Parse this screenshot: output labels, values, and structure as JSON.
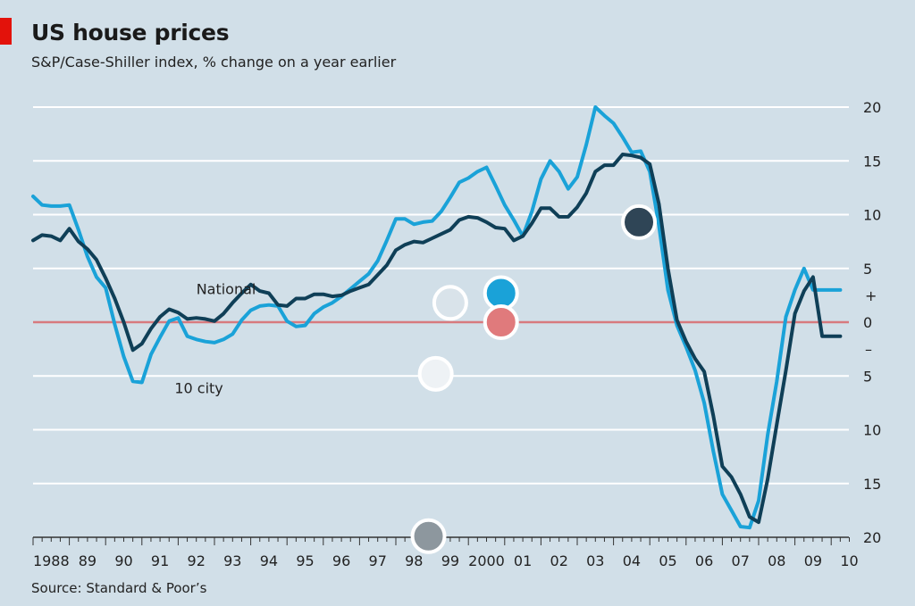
{
  "title": "US house prices",
  "subtitle": "S&P/Case-Shiller index, % change on a year earlier",
  "source": "Source: Standard & Poor’s",
  "colors": {
    "background": "#d1dfe8",
    "accent": "#e3120b",
    "grid": "#ffffff",
    "zero_line": "#d87a7e",
    "national": "#0f3f57",
    "ten_city": "#1aa2d8"
  },
  "chart_data": {
    "type": "line",
    "title": "US house prices",
    "subtitle": "S&P/Case-Shiller index, % change on a year earlier",
    "xlabel": "",
    "ylabel": "",
    "xlim": [
      1988,
      2010.5
    ],
    "ylim": [
      -20,
      20
    ],
    "x_ticks": [
      {
        "x": 1988,
        "label": "1988"
      },
      {
        "x": 1989,
        "label": "89"
      },
      {
        "x": 1990,
        "label": "90"
      },
      {
        "x": 1991,
        "label": "91"
      },
      {
        "x": 1992,
        "label": "92"
      },
      {
        "x": 1993,
        "label": "93"
      },
      {
        "x": 1994,
        "label": "94"
      },
      {
        "x": 1995,
        "label": "95"
      },
      {
        "x": 1996,
        "label": "96"
      },
      {
        "x": 1997,
        "label": "97"
      },
      {
        "x": 1998,
        "label": "98"
      },
      {
        "x": 1999,
        "label": "99"
      },
      {
        "x": 2000,
        "label": "2000"
      },
      {
        "x": 2001,
        "label": "01"
      },
      {
        "x": 2002,
        "label": "02"
      },
      {
        "x": 2003,
        "label": "03"
      },
      {
        "x": 2004,
        "label": "04"
      },
      {
        "x": 2005,
        "label": "05"
      },
      {
        "x": 2006,
        "label": "06"
      },
      {
        "x": 2007,
        "label": "07"
      },
      {
        "x": 2008,
        "label": "08"
      },
      {
        "x": 2009,
        "label": "09"
      },
      {
        "x": 2010,
        "label": "10"
      }
    ],
    "y_ticks": [
      {
        "y": 20,
        "label": "20"
      },
      {
        "y": 15,
        "label": "15"
      },
      {
        "y": 10,
        "label": "10"
      },
      {
        "y": 5,
        "label": "5"
      },
      {
        "y": 0,
        "label": "0"
      },
      {
        "y": -5,
        "label": "5"
      },
      {
        "y": -10,
        "label": "10"
      },
      {
        "y": -15,
        "label": "15"
      },
      {
        "y": -20,
        "label": "20"
      }
    ],
    "sign_markers": [
      {
        "sign": "+",
        "y": 2.5
      },
      {
        "sign": "–",
        "y": -2.5
      }
    ],
    "grid": true,
    "zero_line": true,
    "series": [
      {
        "name": "National",
        "color": "#0f3f57",
        "x": [
          1988.0,
          1988.25,
          1988.5,
          1988.75,
          1989.0,
          1989.25,
          1989.5,
          1989.75,
          1990.0,
          1990.25,
          1990.5,
          1990.75,
          1991.0,
          1991.25,
          1991.5,
          1991.75,
          1992.0,
          1992.25,
          1992.5,
          1992.75,
          1993.0,
          1993.25,
          1993.5,
          1993.75,
          1994.0,
          1994.25,
          1994.5,
          1994.75,
          1995.0,
          1995.25,
          1995.5,
          1995.75,
          1996.0,
          1996.25,
          1996.5,
          1996.75,
          1997.0,
          1997.25,
          1997.5,
          1997.75,
          1998.0,
          1998.25,
          1998.5,
          1998.75,
          1999.0,
          1999.25,
          1999.5,
          1999.75,
          2000.0,
          2000.25,
          2000.5,
          2000.75,
          2001.0,
          2001.25,
          2001.5,
          2001.75,
          2002.0,
          2002.25,
          2002.5,
          2002.75,
          2003.0,
          2003.25,
          2003.5,
          2003.75,
          2004.0,
          2004.25,
          2004.5,
          2004.75,
          2005.0,
          2005.25,
          2005.5,
          2005.75,
          2006.0,
          2006.25,
          2006.5,
          2006.75,
          2007.0,
          2007.25,
          2007.5,
          2007.75,
          2008.0,
          2008.25,
          2008.5,
          2008.75,
          2009.0,
          2009.25,
          2009.5,
          2009.75,
          2010.0,
          2010.25
        ],
        "y": [
          7.6,
          8.1,
          8.0,
          7.6,
          8.7,
          7.5,
          6.8,
          5.8,
          4.1,
          2.2,
          0.0,
          -2.6,
          -2.0,
          -0.6,
          0.5,
          1.2,
          0.9,
          0.3,
          0.4,
          0.3,
          0.1,
          0.8,
          1.8,
          2.7,
          3.5,
          2.9,
          2.7,
          1.6,
          1.5,
          2.2,
          2.2,
          2.6,
          2.6,
          2.4,
          2.5,
          2.9,
          3.2,
          3.5,
          4.4,
          5.3,
          6.7,
          7.2,
          7.5,
          7.4,
          7.8,
          8.2,
          8.6,
          9.5,
          9.8,
          9.7,
          9.3,
          8.8,
          8.7,
          7.6,
          8.0,
          9.2,
          10.6,
          10.6,
          9.8,
          9.8,
          10.7,
          12.0,
          14.0,
          14.6,
          14.6,
          15.6,
          15.5,
          15.3,
          14.7,
          11.0,
          5.0,
          0.2,
          -1.8,
          -3.4,
          -4.6,
          -8.7,
          -13.4,
          -14.4,
          -16.0,
          -18.1,
          -18.6,
          -14.6,
          -9.5,
          -4.5,
          0.8,
          2.9,
          4.2,
          -1.3,
          -1.3,
          -1.3
        ]
      },
      {
        "name": "10 city",
        "color": "#1aa2d8",
        "x": [
          1988.0,
          1988.25,
          1988.5,
          1988.75,
          1989.0,
          1989.25,
          1989.5,
          1989.75,
          1990.0,
          1990.25,
          1990.5,
          1990.75,
          1991.0,
          1991.25,
          1991.5,
          1991.75,
          1992.0,
          1992.25,
          1992.5,
          1992.75,
          1993.0,
          1993.25,
          1993.5,
          1993.75,
          1994.0,
          1994.25,
          1994.5,
          1994.75,
          1995.0,
          1995.25,
          1995.5,
          1995.75,
          1996.0,
          1996.25,
          1996.5,
          1996.75,
          1997.0,
          1997.25,
          1997.5,
          1997.75,
          1998.0,
          1998.25,
          1998.5,
          1998.75,
          1999.0,
          1999.25,
          1999.5,
          1999.75,
          2000.0,
          2000.25,
          2000.5,
          2000.75,
          2001.0,
          2001.25,
          2001.5,
          2001.75,
          2002.0,
          2002.25,
          2002.5,
          2002.75,
          2003.0,
          2003.25,
          2003.5,
          2003.75,
          2004.0,
          2004.25,
          2004.5,
          2004.75,
          2005.0,
          2005.25,
          2005.5,
          2005.75,
          2006.0,
          2006.25,
          2006.5,
          2006.75,
          2007.0,
          2007.25,
          2007.5,
          2007.75,
          2008.0,
          2008.25,
          2008.5,
          2008.75,
          2009.0,
          2009.25,
          2009.5,
          2009.75,
          2010.0,
          2010.25
        ],
        "y": [
          11.7,
          10.9,
          10.8,
          10.8,
          10.9,
          8.6,
          6.1,
          4.2,
          3.2,
          -0.2,
          -3.2,
          -5.5,
          -5.6,
          -3.0,
          -1.4,
          0.1,
          0.4,
          -1.3,
          -1.6,
          -1.8,
          -1.9,
          -1.6,
          -1.1,
          0.2,
          1.1,
          1.5,
          1.6,
          1.5,
          0.1,
          -0.4,
          -0.3,
          0.8,
          1.4,
          1.8,
          2.4,
          3.1,
          3.8,
          4.5,
          5.7,
          7.6,
          9.6,
          9.6,
          9.1,
          9.3,
          9.4,
          10.3,
          11.6,
          13.0,
          13.4,
          14.0,
          14.4,
          12.7,
          10.9,
          9.5,
          8.0,
          10.3,
          13.3,
          15.0,
          14.0,
          12.4,
          13.5,
          16.5,
          20.0,
          19.2,
          18.5,
          17.2,
          15.8,
          15.9,
          14.0,
          9.0,
          3.0,
          -0.3,
          -2.3,
          -4.5,
          -7.5,
          -12.0,
          -16.0,
          -17.5,
          -19.0,
          -19.1,
          -16.6,
          -10.5,
          -5.5,
          0.5,
          3.0,
          5.0,
          3.0,
          3.0,
          3.0,
          3.0
        ]
      }
    ],
    "series_labels": [
      {
        "series": "National",
        "text": "National",
        "x": 1992.5,
        "y": 2.6
      },
      {
        "series": "10 city",
        "text": "10 city",
        "x": 1991.9,
        "y": -6.6
      }
    ],
    "annotations": [
      {
        "type": "circle",
        "x": 1999.5,
        "y": 1.8,
        "fill": "#d9e3ea",
        "stroke": "#ffffff"
      },
      {
        "type": "circle",
        "x": 2000.9,
        "y": 2.7,
        "fill": "#1aa2d8",
        "stroke": "#ffffff"
      },
      {
        "type": "circle",
        "x": 2000.9,
        "y": 0.0,
        "fill": "#e07a7c",
        "stroke": "#ffffff"
      },
      {
        "type": "circle",
        "x": 1999.1,
        "y": -4.8,
        "fill": "#eef2f5",
        "stroke": "#ffffff"
      },
      {
        "type": "circle",
        "x": 1998.9,
        "y": -19.9,
        "fill": "#8d979e",
        "stroke": "#ffffff"
      },
      {
        "type": "circle",
        "x": 2004.7,
        "y": 9.3,
        "fill": "#2f4556",
        "stroke": "#ffffff"
      }
    ]
  }
}
